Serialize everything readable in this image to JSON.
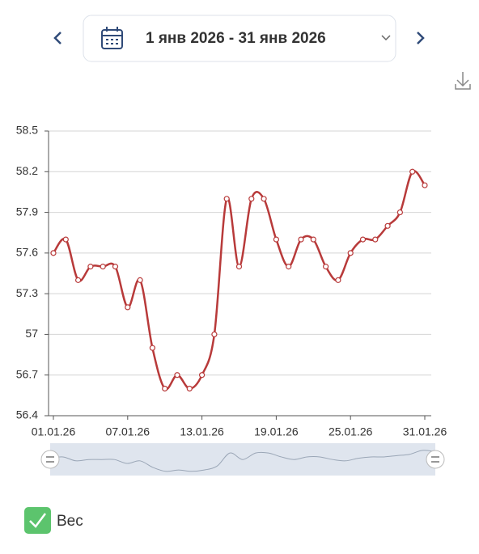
{
  "header": {
    "date_range": "1 янв 2026 - 31 янв 2026"
  },
  "chart_data": {
    "type": "line",
    "categories": [
      "01.01.26",
      null,
      null,
      null,
      null,
      null,
      "07.01.26",
      null,
      null,
      null,
      null,
      null,
      "13.01.26",
      null,
      null,
      null,
      null,
      null,
      "19.01.26",
      null,
      null,
      null,
      null,
      null,
      "25.01.26",
      null,
      null,
      null,
      null,
      null,
      "31.01.26"
    ],
    "series": [
      {
        "name": "Вес",
        "color": "#b83a3a",
        "values": [
          57.6,
          57.7,
          57.4,
          57.5,
          57.5,
          57.5,
          57.2,
          57.4,
          56.9,
          56.6,
          56.7,
          56.6,
          56.7,
          57.0,
          58.0,
          57.5,
          58.0,
          58.0,
          57.7,
          57.5,
          57.7,
          57.7,
          57.5,
          57.4,
          57.6,
          57.7,
          57.7,
          57.8,
          57.9,
          58.2,
          58.1
        ]
      }
    ],
    "ylim": [
      56.4,
      58.5
    ],
    "yticks": [
      56.4,
      56.7,
      57,
      57.3,
      57.6,
      57.9,
      58.2,
      58.5
    ],
    "grid": true
  }
}
